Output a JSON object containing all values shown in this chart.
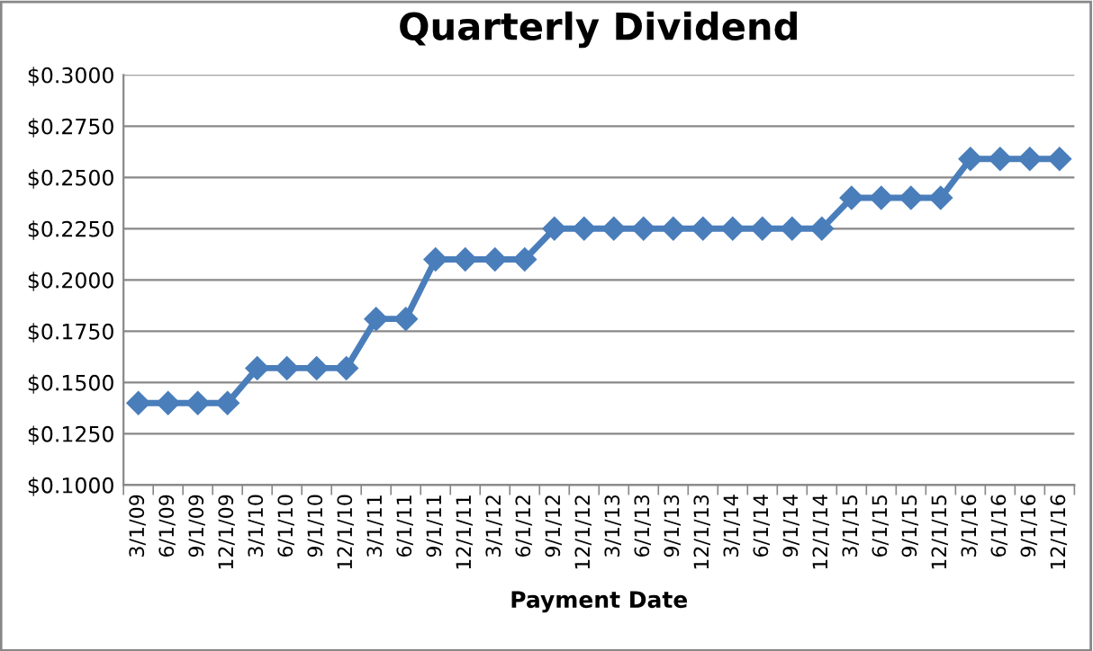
{
  "chart_data": {
    "type": "line",
    "title": "Quarterly Dividend",
    "xlabel": "Payment Date",
    "categories": [
      "3/1/09",
      "6/1/09",
      "9/1/09",
      "12/1/09",
      "3/1/10",
      "6/1/10",
      "9/1/10",
      "12/1/10",
      "3/1/11",
      "6/1/11",
      "9/1/11",
      "12/1/11",
      "3/1/12",
      "6/1/12",
      "9/1/12",
      "12/1/12",
      "3/1/13",
      "6/1/13",
      "9/1/13",
      "12/1/13",
      "3/1/14",
      "6/1/14",
      "9/1/14",
      "12/1/14",
      "3/1/15",
      "6/1/15",
      "9/1/15",
      "12/1/15",
      "3/1/16",
      "6/1/16",
      "9/1/16",
      "12/1/16"
    ],
    "series": [
      {
        "color": "#4a7ebb",
        "values": [
          0.14,
          0.14,
          0.14,
          0.14,
          0.157,
          0.157,
          0.157,
          0.157,
          0.181,
          0.181,
          0.21,
          0.21,
          0.21,
          0.21,
          0.225,
          0.225,
          0.225,
          0.225,
          0.225,
          0.225,
          0.225,
          0.225,
          0.225,
          0.225,
          0.24,
          0.24,
          0.24,
          0.24,
          0.259,
          0.259,
          0.259,
          0.259
        ]
      }
    ],
    "ylim": [
      0.1,
      0.3
    ],
    "yticks": [
      {
        "value": 0.1,
        "label": "$0.1000"
      },
      {
        "value": 0.125,
        "label": "$0.1250"
      },
      {
        "value": 0.15,
        "label": "$0.1500"
      },
      {
        "value": 0.175,
        "label": "$0.1750"
      },
      {
        "value": 0.2,
        "label": "$0.2000"
      },
      {
        "value": 0.225,
        "label": "$0.2250"
      },
      {
        "value": 0.25,
        "label": "$0.2500"
      },
      {
        "value": 0.275,
        "label": "$0.2750"
      },
      {
        "value": 0.3,
        "label": "$0.3000"
      }
    ],
    "grid": "y",
    "marker": "diamond",
    "line_style": "solid"
  }
}
